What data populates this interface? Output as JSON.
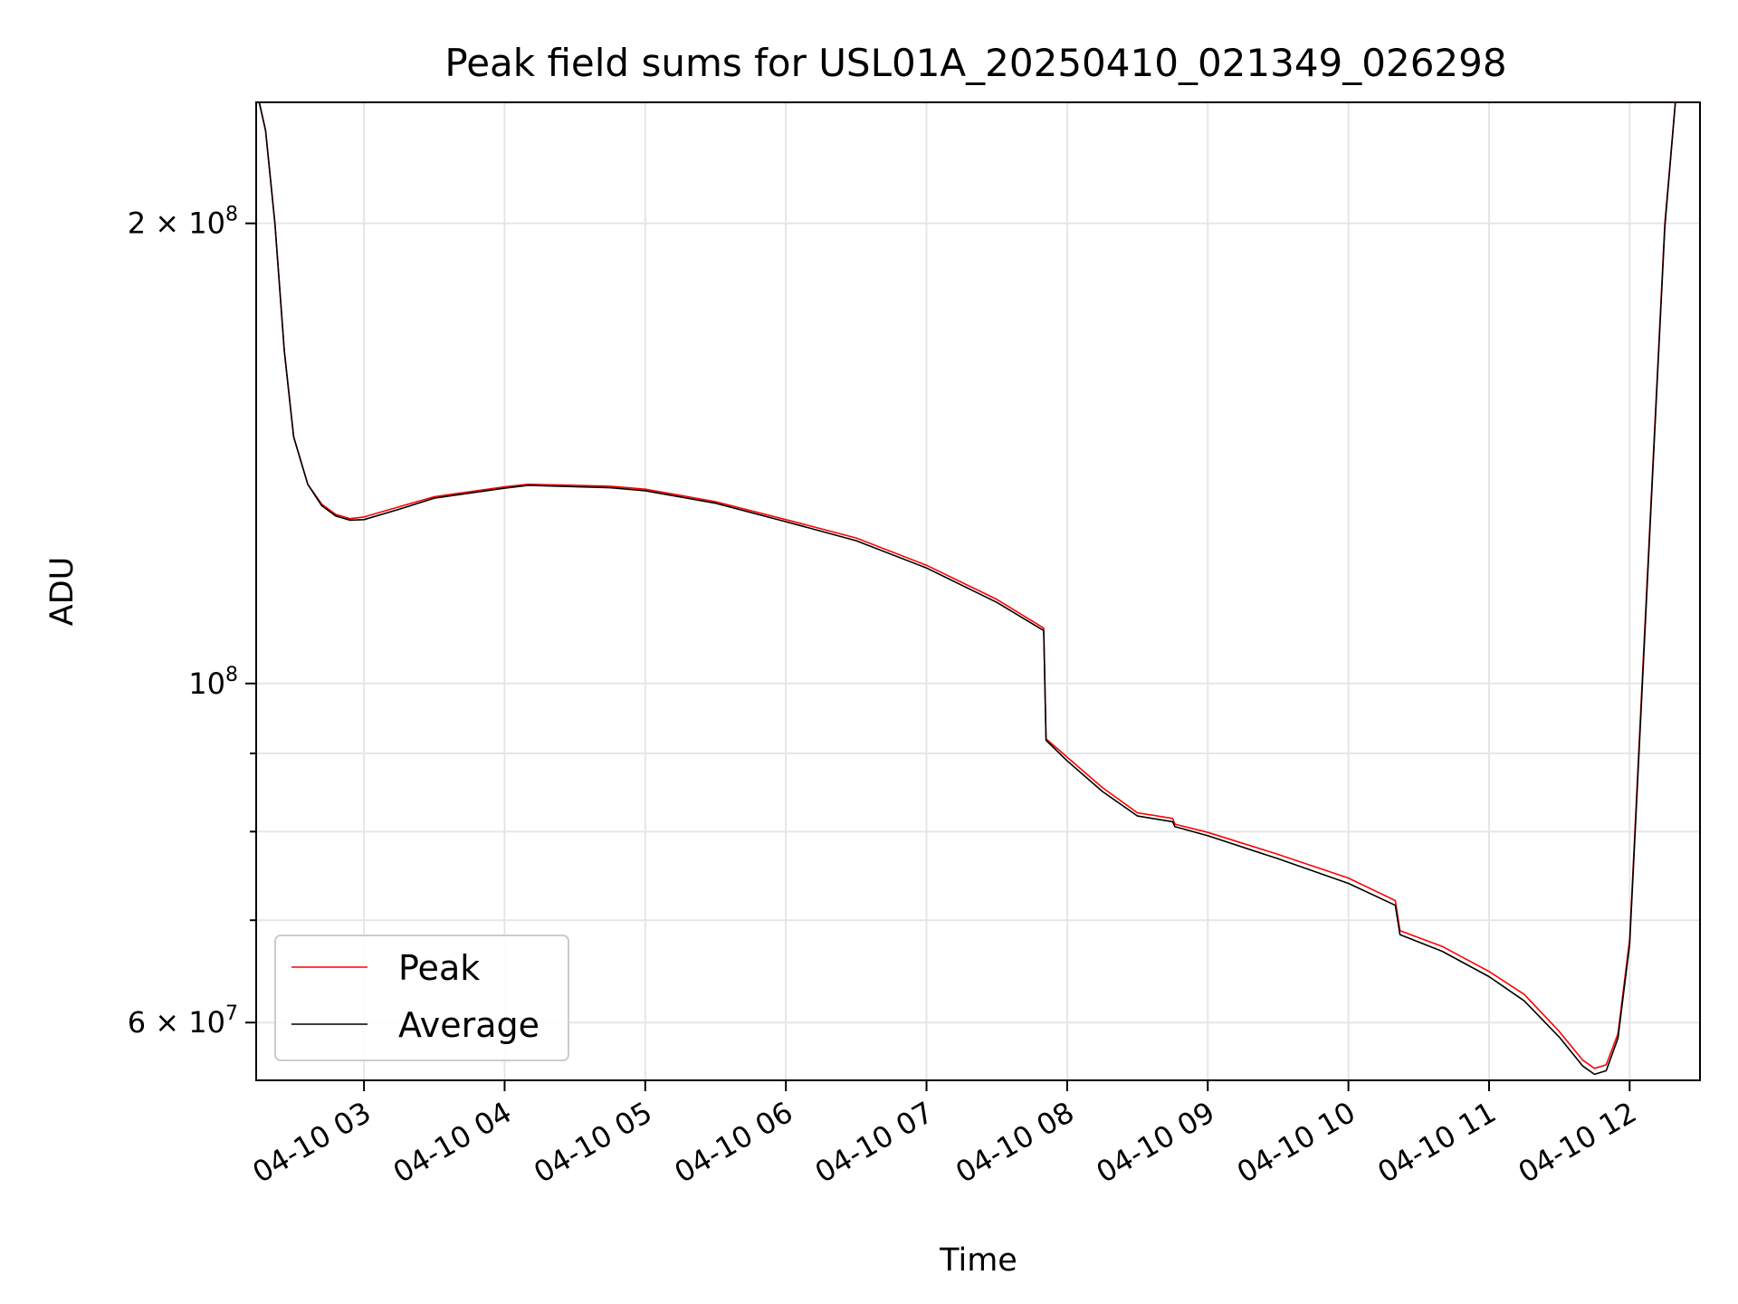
{
  "chart_data": {
    "type": "line",
    "title": "Peak field sums for USL01A_20250410_021349_026298",
    "xlabel": "Time",
    "ylabel": "ADU",
    "yscale": "log",
    "grid": true,
    "legend_position": "lower-left",
    "xlim": [
      "2025-04-10 02:14",
      "2025-04-10 12:30"
    ],
    "ylim": [
      55000000,
      240000000
    ],
    "x_ticks": [
      {
        "value": "2025-04-10 03:00",
        "label": "04-10 03"
      },
      {
        "value": "2025-04-10 04:00",
        "label": "04-10 04"
      },
      {
        "value": "2025-04-10 05:00",
        "label": "04-10 05"
      },
      {
        "value": "2025-04-10 06:00",
        "label": "04-10 06"
      },
      {
        "value": "2025-04-10 07:00",
        "label": "04-10 07"
      },
      {
        "value": "2025-04-10 08:00",
        "label": "04-10 08"
      },
      {
        "value": "2025-04-10 09:00",
        "label": "04-10 09"
      },
      {
        "value": "2025-04-10 10:00",
        "label": "04-10 10"
      },
      {
        "value": "2025-04-10 11:00",
        "label": "04-10 11"
      },
      {
        "value": "2025-04-10 12:00",
        "label": "04-10 12"
      }
    ],
    "y_ticks": [
      {
        "value": 200000000,
        "base": "2 × 10",
        "exp": "8"
      },
      {
        "value": 100000000,
        "base": "10",
        "exp": "8"
      },
      {
        "value": 60000000,
        "base": "6 × 10",
        "exp": "7"
      }
    ],
    "y_minor_ticks": [
      70000000,
      80000000,
      90000000
    ],
    "series": [
      {
        "name": "Peak",
        "color": "#ff0000",
        "x": [
          "2025-04-10 02:14",
          "2025-04-10 02:18",
          "2025-04-10 02:22",
          "2025-04-10 02:26",
          "2025-04-10 02:30",
          "2025-04-10 02:36",
          "2025-04-10 02:42",
          "2025-04-10 02:48",
          "2025-04-10 02:54",
          "2025-04-10 03:00",
          "2025-04-10 03:15",
          "2025-04-10 03:30",
          "2025-04-10 03:45",
          "2025-04-10 04:00",
          "2025-04-10 04:10",
          "2025-04-10 04:30",
          "2025-04-10 04:45",
          "2025-04-10 05:00",
          "2025-04-10 05:30",
          "2025-04-10 06:00",
          "2025-04-10 06:30",
          "2025-04-10 07:00",
          "2025-04-10 07:30",
          "2025-04-10 07:50",
          "2025-04-10 07:51",
          "2025-04-10 08:00",
          "2025-04-10 08:15",
          "2025-04-10 08:30",
          "2025-04-10 08:45",
          "2025-04-10 08:46",
          "2025-04-10 09:00",
          "2025-04-10 09:30",
          "2025-04-10 10:00",
          "2025-04-10 10:20",
          "2025-04-10 10:22",
          "2025-04-10 10:40",
          "2025-04-10 11:00",
          "2025-04-10 11:15",
          "2025-04-10 11:30",
          "2025-04-10 11:40",
          "2025-04-10 11:45",
          "2025-04-10 11:50",
          "2025-04-10 11:55",
          "2025-04-10 12:00",
          "2025-04-10 12:05",
          "2025-04-10 12:10",
          "2025-04-10 12:15",
          "2025-04-10 12:20"
        ],
        "y": [
          245000000,
          230000000,
          200000000,
          165000000,
          145000000,
          135000000,
          131000000,
          129000000,
          128200000,
          128500000,
          130500000,
          132500000,
          133500000,
          134500000,
          135000000,
          134800000,
          134600000,
          134000000,
          131500000,
          128000000,
          124500000,
          119500000,
          113500000,
          108700000,
          92000000,
          89500000,
          85500000,
          82300000,
          81600000,
          80900000,
          79900000,
          77300000,
          74600000,
          72100000,
          68900000,
          67300000,
          64800000,
          62600000,
          59200000,
          56700000,
          56000000,
          56300000,
          59000000,
          68000000,
          98000000,
          140000000,
          200000000,
          245000000
        ]
      },
      {
        "name": "Average",
        "color": "#000000",
        "x": [
          "2025-04-10 02:14",
          "2025-04-10 02:18",
          "2025-04-10 02:22",
          "2025-04-10 02:26",
          "2025-04-10 02:30",
          "2025-04-10 02:36",
          "2025-04-10 02:42",
          "2025-04-10 02:48",
          "2025-04-10 02:54",
          "2025-04-10 03:00",
          "2025-04-10 03:15",
          "2025-04-10 03:30",
          "2025-04-10 03:45",
          "2025-04-10 04:00",
          "2025-04-10 04:10",
          "2025-04-10 04:30",
          "2025-04-10 04:45",
          "2025-04-10 05:00",
          "2025-04-10 05:30",
          "2025-04-10 06:00",
          "2025-04-10 06:30",
          "2025-04-10 07:00",
          "2025-04-10 07:30",
          "2025-04-10 07:50",
          "2025-04-10 07:51",
          "2025-04-10 08:00",
          "2025-04-10 08:15",
          "2025-04-10 08:30",
          "2025-04-10 08:45",
          "2025-04-10 08:46",
          "2025-04-10 09:00",
          "2025-04-10 09:30",
          "2025-04-10 10:00",
          "2025-04-10 10:20",
          "2025-04-10 10:22",
          "2025-04-10 10:40",
          "2025-04-10 11:00",
          "2025-04-10 11:15",
          "2025-04-10 11:30",
          "2025-04-10 11:40",
          "2025-04-10 11:45",
          "2025-04-10 11:50",
          "2025-04-10 11:55",
          "2025-04-10 12:00",
          "2025-04-10 12:05",
          "2025-04-10 12:10",
          "2025-04-10 12:15",
          "2025-04-10 12:20"
        ],
        "y": [
          245000000,
          230000000,
          200000000,
          165000000,
          145000000,
          135000000,
          130700000,
          128700000,
          127900000,
          128000000,
          130000000,
          132200000,
          133200000,
          134200000,
          134800000,
          134500000,
          134300000,
          133700000,
          131200000,
          127600000,
          124000000,
          119000000,
          113000000,
          108300000,
          91800000,
          89000000,
          85000000,
          81900000,
          81200000,
          80600000,
          79500000,
          76800000,
          74000000,
          71600000,
          68500000,
          66800000,
          64300000,
          62000000,
          58700000,
          56200000,
          55500000,
          55800000,
          58600000,
          67500000,
          97000000,
          139000000,
          199000000,
          245000000
        ]
      }
    ]
  }
}
